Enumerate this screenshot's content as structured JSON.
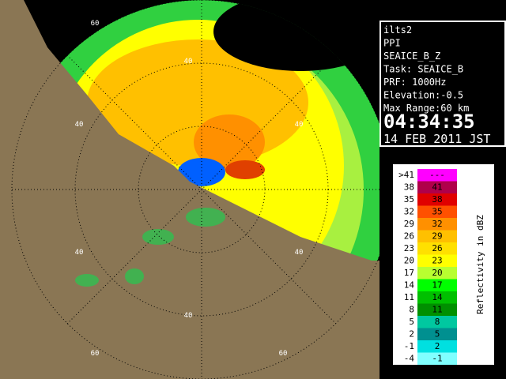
{
  "info": {
    "lines": [
      "ilts2",
      "PPI",
      "SEAICE_B_Z",
      "Task: SEAICE_B",
      "PRF: 1000Hz",
      "Elevation:-0.5",
      "Max Range:60 km"
    ],
    "time": "04:34:35",
    "date": "14 FEB 2011 JST"
  },
  "legend": {
    "title": "Reflectivity in dBZ",
    "rows": [
      {
        "from": ">41",
        "to": "---",
        "color": "#ff00ff"
      },
      {
        "from": "38",
        "to": "41",
        "color": "#b0004a"
      },
      {
        "from": "35",
        "to": "38",
        "color": "#e00000"
      },
      {
        "from": "32",
        "to": "35",
        "color": "#ff5000"
      },
      {
        "from": "29",
        "to": "32",
        "color": "#ff9000"
      },
      {
        "from": "26",
        "to": "29",
        "color": "#ffc000"
      },
      {
        "from": "23",
        "to": "26",
        "color": "#ffe000"
      },
      {
        "from": "20",
        "to": "23",
        "color": "#ffff00"
      },
      {
        "from": "17",
        "to": "20",
        "color": "#b8ff30"
      },
      {
        "from": "14",
        "to": "17",
        "color": "#00ff00"
      },
      {
        "from": "11",
        "to": "14",
        "color": "#00c000"
      },
      {
        "from": "8",
        "to": "11",
        "color": "#009000"
      },
      {
        "from": "5",
        "to": "8",
        "color": "#00c8a0"
      },
      {
        "from": "2",
        "to": "5",
        "color": "#009090"
      },
      {
        "from": "-1",
        "to": "2",
        "color": "#00e0e0"
      },
      {
        "from": "-4",
        "to": "-1",
        "color": "#80ffff"
      }
    ]
  },
  "ring_labels": [
    "60",
    "40",
    "40",
    "40",
    "40",
    "40",
    "40",
    "60",
    "60"
  ]
}
